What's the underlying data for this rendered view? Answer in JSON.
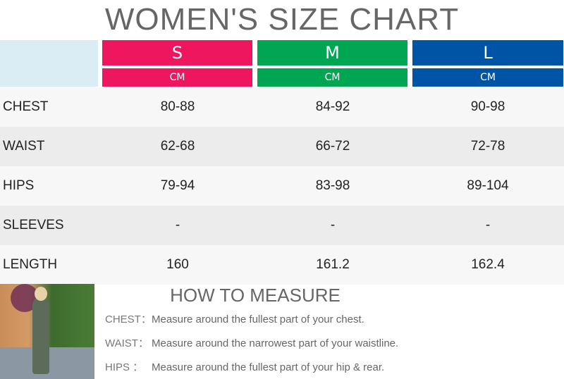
{
  "title": "WOMEN'S SIZE CHART",
  "sizes": [
    {
      "label": "S",
      "unit": "CM",
      "color": "#ee175f"
    },
    {
      "label": "M",
      "unit": "CM",
      "color": "#00a651"
    },
    {
      "label": "L",
      "unit": "CM",
      "color": "#0054a6"
    }
  ],
  "rows": [
    {
      "label": "CHEST",
      "values": [
        "80-88",
        "84-92",
        "90-98"
      ]
    },
    {
      "label": "WAIST",
      "values": [
        "62-68",
        "66-72",
        "72-78"
      ]
    },
    {
      "label": "HIPS",
      "values": [
        "79-94",
        "83-98",
        "89-104"
      ]
    },
    {
      "label": "SLEEVES",
      "values": [
        "-",
        "-",
        "-"
      ]
    },
    {
      "label": "LENGTH",
      "values": [
        "160",
        "161.2",
        "162.4"
      ]
    }
  ],
  "how_to": {
    "title": "HOW TO MEASURE",
    "items": [
      {
        "key": "CHEST：",
        "text": "Measure around the fullest part of your chest."
      },
      {
        "key": "WAIST：",
        "text": "Measure around the narrowest part of your waistline."
      },
      {
        "key": "HIPS  ：",
        "text": "Measure around the fullest part of your hip & rear."
      }
    ]
  }
}
